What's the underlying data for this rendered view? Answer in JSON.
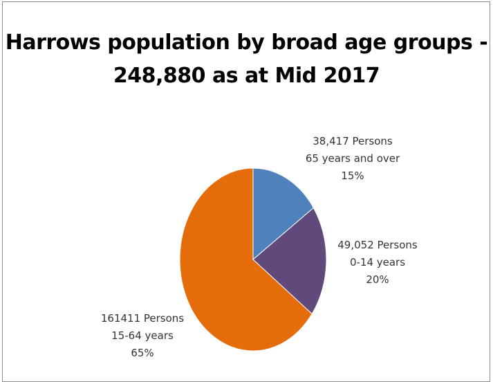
{
  "chart_data": {
    "type": "pie",
    "title_lines": [
      "Harrows population by broad age groups -",
      "248,880 as at Mid 2017"
    ],
    "legend": "none",
    "slices": [
      {
        "category": "65 years and over",
        "persons_text": "38,417 Persons",
        "value": 38417,
        "percent_text": "15%",
        "color": "#4f81bd"
      },
      {
        "category": "0-14 years",
        "persons_text": "49,052 Persons",
        "value": 49052,
        "percent_text": "20%",
        "color": "#604a7b"
      },
      {
        "category": "15-64 years",
        "persons_text": "161411 Persons",
        "value": 161411,
        "percent_text": "65%",
        "color": "#e46c0a"
      }
    ]
  }
}
